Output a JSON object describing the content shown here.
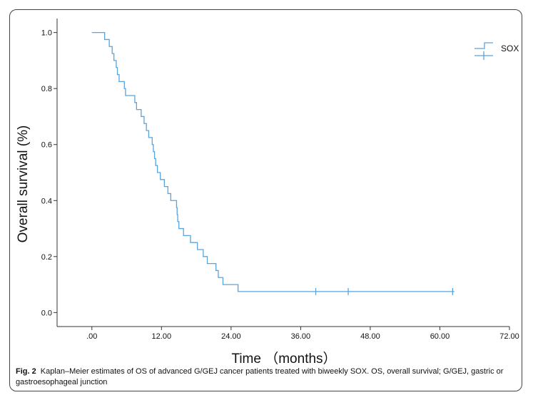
{
  "chart_data": {
    "type": "line",
    "subtype": "kaplan-meier-step",
    "xlabel": "Time （months）",
    "ylabel": "Overall survival (%)",
    "xlim": [
      -6,
      72
    ],
    "ylim": [
      -0.05,
      1.05
    ],
    "x_ticks": [
      0,
      12,
      24,
      36,
      48,
      60,
      72
    ],
    "x_tick_labels": [
      ".00",
      "12.00",
      "24.00",
      "36.00",
      "48.00",
      "60.00",
      "72.00"
    ],
    "y_ticks": [
      0,
      0.2,
      0.4,
      0.6,
      0.8,
      1.0
    ],
    "y_tick_labels": [
      "0.0",
      "0.2",
      "0.4",
      "0.6",
      "0.8",
      "1.0"
    ],
    "grid": false,
    "legend_position": "top-right",
    "color": "#5aa4dc",
    "series": [
      {
        "name": "SOX",
        "steps": [
          [
            0,
            1.0
          ],
          [
            2.2,
            0.975
          ],
          [
            3.0,
            0.95
          ],
          [
            3.5,
            0.925
          ],
          [
            3.8,
            0.9
          ],
          [
            4.2,
            0.875
          ],
          [
            4.4,
            0.85
          ],
          [
            4.7,
            0.825
          ],
          [
            5.6,
            0.8
          ],
          [
            5.8,
            0.775
          ],
          [
            7.4,
            0.75
          ],
          [
            7.7,
            0.725
          ],
          [
            8.5,
            0.7
          ],
          [
            9.0,
            0.675
          ],
          [
            9.4,
            0.65
          ],
          [
            9.8,
            0.625
          ],
          [
            10.4,
            0.6
          ],
          [
            10.6,
            0.575
          ],
          [
            10.8,
            0.55
          ],
          [
            11.0,
            0.525
          ],
          [
            11.3,
            0.5
          ],
          [
            11.8,
            0.475
          ],
          [
            12.5,
            0.45
          ],
          [
            13.1,
            0.425
          ],
          [
            13.6,
            0.4
          ],
          [
            14.6,
            0.375
          ],
          [
            14.7,
            0.35
          ],
          [
            14.8,
            0.325
          ],
          [
            15.0,
            0.3
          ],
          [
            15.8,
            0.275
          ],
          [
            17.0,
            0.25
          ],
          [
            18.2,
            0.225
          ],
          [
            19.2,
            0.2
          ],
          [
            19.9,
            0.175
          ],
          [
            21.4,
            0.15
          ],
          [
            21.8,
            0.125
          ],
          [
            22.6,
            0.1
          ],
          [
            25.2,
            0.075
          ]
        ],
        "end_x": 62.5,
        "censored": [
          [
            38.6,
            0.075
          ],
          [
            44.2,
            0.075
          ],
          [
            62.2,
            0.075
          ]
        ]
      }
    ],
    "legend": [
      {
        "label": "SOX",
        "symbol": "step-line"
      },
      {
        "label": "",
        "symbol": "censor-cross"
      }
    ]
  },
  "caption": {
    "label": "Fig. 2",
    "text": "Kaplan–Meier estimates of OS of advanced G/GEJ cancer patients treated with biweekly SOX. OS, overall survival; G/GEJ, gastric or gastroesophageal junction"
  }
}
